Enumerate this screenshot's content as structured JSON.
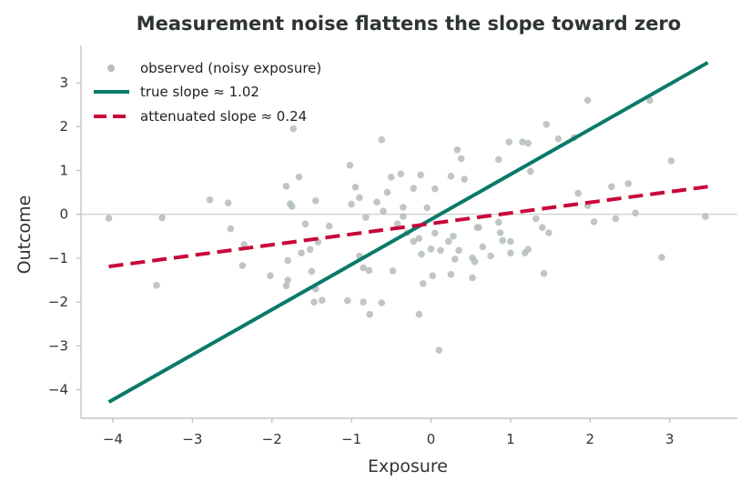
{
  "chart_data": {
    "type": "scatter",
    "title": "Measurement noise flattens the slope toward zero",
    "xlabel": "Exposure",
    "ylabel": "Outcome",
    "xlim": [
      -4.4,
      3.85
    ],
    "ylim": [
      -4.65,
      3.85
    ],
    "xticks": [
      -4,
      -3,
      -2,
      -1,
      0,
      1,
      2,
      3
    ],
    "yticks": [
      -4,
      -3,
      -2,
      -1,
      0,
      1,
      2,
      3
    ],
    "xtick_labels": [
      "−4",
      "−3",
      "−2",
      "−1",
      "0",
      "1",
      "2",
      "3"
    ],
    "ytick_labels": [
      "−4",
      "−3",
      "−2",
      "−1",
      "0",
      "1",
      "2",
      "3"
    ],
    "grid": false,
    "zero_line": true,
    "legend_position": "top-left",
    "colors": {
      "points": "#b4bdbb",
      "true_line": "#0a7a68",
      "attenuated_line": "#c8063a",
      "axis": "#bbbbbb"
    },
    "series": [
      {
        "name": "observed (noisy exposure)",
        "kind": "scatter",
        "points": [
          [
            -4.05,
            -0.09
          ],
          [
            -3.45,
            -1.62
          ],
          [
            -3.38,
            -0.08
          ],
          [
            -2.78,
            0.33
          ],
          [
            -2.55,
            0.26
          ],
          [
            -2.52,
            -0.33
          ],
          [
            -2.37,
            -1.17
          ],
          [
            -2.35,
            -0.69
          ],
          [
            -2.02,
            -1.4
          ],
          [
            -1.82,
            0.64
          ],
          [
            -1.8,
            -1.05
          ],
          [
            -1.8,
            -1.5
          ],
          [
            -1.82,
            -1.63
          ],
          [
            -1.77,
            0.24
          ],
          [
            -1.75,
            0.18
          ],
          [
            -1.73,
            1.95
          ],
          [
            -1.66,
            0.85
          ],
          [
            -1.63,
            -0.88
          ],
          [
            -1.58,
            -0.22
          ],
          [
            -1.52,
            -0.8
          ],
          [
            -1.5,
            -1.3
          ],
          [
            -1.47,
            -2.0
          ],
          [
            -1.45,
            -1.7
          ],
          [
            -1.45,
            0.31
          ],
          [
            -1.42,
            -0.63
          ],
          [
            -1.37,
            -1.96
          ],
          [
            -1.28,
            -0.27
          ],
          [
            -1.05,
            -1.97
          ],
          [
            -1.02,
            1.12
          ],
          [
            -1.0,
            0.23
          ],
          [
            -0.95,
            0.62
          ],
          [
            -0.9,
            -0.95
          ],
          [
            -0.9,
            0.38
          ],
          [
            -0.85,
            -1.22
          ],
          [
            -0.85,
            -2.0
          ],
          [
            -0.82,
            -0.07
          ],
          [
            -0.78,
            -1.28
          ],
          [
            -0.77,
            -2.28
          ],
          [
            -0.68,
            0.28
          ],
          [
            -0.62,
            1.7
          ],
          [
            -0.62,
            -2.02
          ],
          [
            -0.6,
            0.07
          ],
          [
            -0.55,
            0.5
          ],
          [
            -0.5,
            0.85
          ],
          [
            -0.48,
            -1.29
          ],
          [
            -0.42,
            -0.22
          ],
          [
            -0.38,
            0.92
          ],
          [
            -0.35,
            0.16
          ],
          [
            -0.35,
            -0.05
          ],
          [
            -0.3,
            -0.42
          ],
          [
            -0.22,
            -0.62
          ],
          [
            -0.22,
            0.59
          ],
          [
            -0.15,
            -0.55
          ],
          [
            -0.15,
            -2.28
          ],
          [
            -0.13,
            0.9
          ],
          [
            -0.12,
            -0.91
          ],
          [
            -0.1,
            -1.58
          ],
          [
            -0.05,
            0.15
          ],
          [
            0.0,
            -0.79
          ],
          [
            0.02,
            -1.4
          ],
          [
            0.05,
            0.58
          ],
          [
            0.05,
            -0.43
          ],
          [
            0.1,
            -3.1
          ],
          [
            0.12,
            -0.82
          ],
          [
            0.22,
            -0.62
          ],
          [
            0.25,
            0.87
          ],
          [
            0.25,
            -1.37
          ],
          [
            0.28,
            -0.5
          ],
          [
            0.3,
            -1.02
          ],
          [
            0.33,
            1.47
          ],
          [
            0.35,
            -0.82
          ],
          [
            0.38,
            1.27
          ],
          [
            0.42,
            0.8
          ],
          [
            0.52,
            -0.99
          ],
          [
            0.52,
            -1.45
          ],
          [
            0.55,
            -1.08
          ],
          [
            0.58,
            -0.3
          ],
          [
            0.6,
            -0.3
          ],
          [
            0.65,
            -0.74
          ],
          [
            0.75,
            -0.95
          ],
          [
            0.85,
            1.25
          ],
          [
            0.85,
            -0.18
          ],
          [
            0.87,
            -0.42
          ],
          [
            0.9,
            -0.6
          ],
          [
            0.98,
            1.65
          ],
          [
            1.0,
            -0.62
          ],
          [
            1.0,
            -0.88
          ],
          [
            1.15,
            1.65
          ],
          [
            1.18,
            -0.88
          ],
          [
            1.22,
            -0.8
          ],
          [
            1.22,
            1.62
          ],
          [
            1.25,
            0.98
          ],
          [
            1.32,
            -0.1
          ],
          [
            1.4,
            -0.3
          ],
          [
            1.42,
            -1.35
          ],
          [
            1.45,
            2.05
          ],
          [
            1.48,
            -0.42
          ],
          [
            1.6,
            1.72
          ],
          [
            1.8,
            1.75
          ],
          [
            1.85,
            0.48
          ],
          [
            1.97,
            2.6
          ],
          [
            1.97,
            0.2
          ],
          [
            2.05,
            -0.17
          ],
          [
            2.27,
            0.63
          ],
          [
            2.32,
            -0.1
          ],
          [
            2.48,
            0.7
          ],
          [
            2.57,
            0.03
          ],
          [
            2.75,
            2.6
          ],
          [
            2.9,
            -0.98
          ],
          [
            3.02,
            1.22
          ],
          [
            3.45,
            -0.05
          ]
        ]
      },
      {
        "name": "true slope ≈ 1.02",
        "kind": "line",
        "x": [
          -4.05,
          3.48
        ],
        "y": [
          -4.28,
          3.46
        ]
      },
      {
        "name": "attenuated slope ≈ 0.24",
        "kind": "line",
        "dashed": true,
        "x": [
          -4.05,
          3.48
        ],
        "y": [
          -1.19,
          0.63
        ]
      }
    ]
  }
}
